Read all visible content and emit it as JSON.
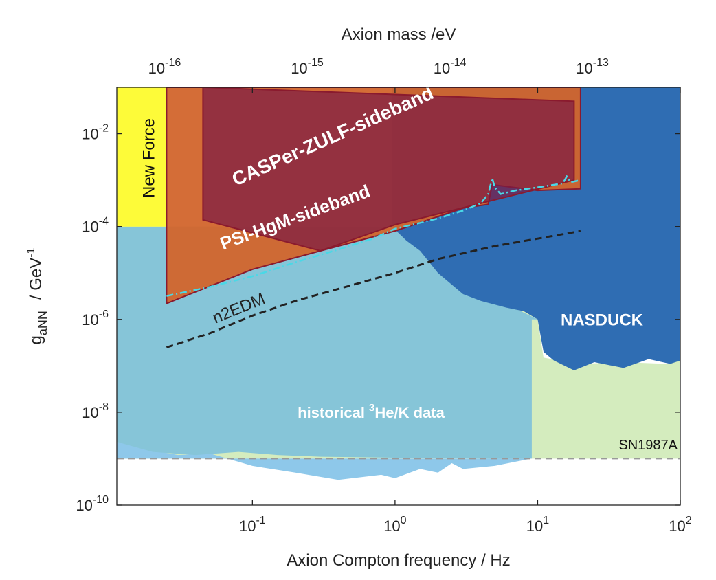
{
  "chart_data": {
    "type": "area",
    "xlabel": "Axion Compton frequency / Hz",
    "x2label": "Axion mass /eV",
    "ylabel_main": "g",
    "ylabel_sub": "aNN",
    "ylabel_unit": "/ GeV",
    "ylabel_unit_exp": "-1",
    "x_scale": "log",
    "y_scale": "log",
    "xlim": [
      0.0112,
      100
    ],
    "ylim": [
      1e-10,
      0.1
    ],
    "x_ticks": [
      {
        "value": 0.1,
        "base": "10",
        "exp": "-1"
      },
      {
        "value": 1,
        "base": "10",
        "exp": "0"
      },
      {
        "value": 10,
        "base": "10",
        "exp": "1"
      },
      {
        "value": 100,
        "base": "10",
        "exp": "2"
      }
    ],
    "y_ticks": [
      {
        "value": 1e-10,
        "base": "10",
        "exp": "-10"
      },
      {
        "value": 1e-08,
        "base": "10",
        "exp": "-8"
      },
      {
        "value": 1e-06,
        "base": "10",
        "exp": "-6"
      },
      {
        "value": 0.0001,
        "base": "10",
        "exp": "-4"
      },
      {
        "value": 0.01,
        "base": "10",
        "exp": "-2"
      }
    ],
    "x2_ticks": [
      {
        "value": 0.0242,
        "base": "10",
        "exp": "-16"
      },
      {
        "value": 0.242,
        "base": "10",
        "exp": "-15"
      },
      {
        "value": 2.42,
        "base": "10",
        "exp": "-14"
      },
      {
        "value": 24.2,
        "base": "10",
        "exp": "-13"
      }
    ],
    "grid": false,
    "regions": [
      {
        "name": "SN1987A",
        "color": "#d4ecbe",
        "points": [
          [
            0.0112,
            1e-09
          ],
          [
            100,
            1e-09
          ],
          [
            100,
            1.3e-07
          ],
          [
            80,
            1.1e-07
          ],
          [
            40,
            1.2e-07
          ],
          [
            20,
            1.1e-07
          ],
          [
            11,
            1.5e-07
          ],
          [
            10,
            1e-06
          ],
          [
            0.95,
            0.0001
          ],
          [
            0.0112,
            0.0001
          ]
        ]
      },
      {
        "name": "historical He/K data lower band",
        "color": "#8ec8ea",
        "points": [
          [
            0.0112,
            2.3e-09
          ],
          [
            0.02,
            1.5e-09
          ],
          [
            0.03,
            1.2e-09
          ],
          [
            0.05,
            1.3e-09
          ],
          [
            0.1,
            7e-10
          ],
          [
            0.2,
            5e-10
          ],
          [
            0.4,
            3.5e-10
          ],
          [
            0.8,
            4.5e-10
          ],
          [
            1.0,
            3.8e-10
          ],
          [
            1.5,
            6e-10
          ],
          [
            2.0,
            5e-10
          ],
          [
            2.5,
            8e-10
          ],
          [
            3.0,
            6e-10
          ],
          [
            5.0,
            7e-10
          ],
          [
            9.0,
            1e-09
          ],
          [
            9.0,
            1e-09
          ],
          [
            0.0112,
            1e-09
          ]
        ]
      },
      {
        "name": "historical He/K data",
        "color": "#86c5d8",
        "points": [
          [
            0.0112,
            2.3e-09
          ],
          [
            0.02,
            1.4e-09
          ],
          [
            0.04,
            1.2e-09
          ],
          [
            0.08,
            1.4e-09
          ],
          [
            0.15,
            1.2e-09
          ],
          [
            0.3,
            1.1e-09
          ],
          [
            1.0,
            1.05e-09
          ],
          [
            5.0,
            1e-09
          ],
          [
            9.1,
            1e-09
          ],
          [
            9.1,
            1e-06
          ],
          [
            10,
            1e-06
          ],
          [
            4,
            4e-06
          ],
          [
            2,
            1.5e-05
          ],
          [
            1,
            0.0001
          ],
          [
            0.0112,
            0.0001
          ]
        ]
      },
      {
        "name": "NASDUCK",
        "color": "#2f6db3",
        "points": [
          [
            0.95,
            0.0001
          ],
          [
            0.95,
            0.1
          ],
          [
            100,
            0.1
          ],
          [
            100,
            1.3e-07
          ],
          [
            85,
            1.1e-07
          ],
          [
            60,
            1.4e-07
          ],
          [
            40,
            9e-08
          ],
          [
            25,
            1.2e-07
          ],
          [
            18,
            8e-08
          ],
          [
            13,
            1.3e-07
          ],
          [
            11,
            2e-07
          ],
          [
            10,
            1e-06
          ],
          [
            8,
            1.5e-06
          ],
          [
            6,
            1.8e-06
          ],
          [
            4,
            2.5e-06
          ],
          [
            3,
            3.5e-06
          ],
          [
            2,
            1e-05
          ],
          [
            1.5,
            3e-05
          ],
          [
            1.2,
            5e-05
          ],
          [
            0.95,
            0.0001
          ]
        ]
      },
      {
        "name": "New Force",
        "color": "#fdfb39",
        "points": [
          [
            0.0112,
            0.0001
          ],
          [
            0.0112,
            0.1
          ],
          [
            0.025,
            0.1
          ],
          [
            0.025,
            0.0001
          ]
        ]
      },
      {
        "name": "PSI-HgM-sideband",
        "color": "#d2652c",
        "opacity": 0.95,
        "points": [
          [
            0.025,
            0.1
          ],
          [
            20,
            0.1
          ],
          [
            20,
            0.00065
          ],
          [
            10,
            0.0006
          ],
          [
            4.8,
            0.0008
          ],
          [
            4.5,
            0.0003
          ],
          [
            3,
            0.00025
          ],
          [
            1,
            8e-05
          ],
          [
            0.3,
            3e-05
          ],
          [
            0.1,
            1.2e-05
          ],
          [
            0.025,
            2.2e-06
          ]
        ]
      },
      {
        "name": "CASPer-ZULF-sideband",
        "color": "#7b1b44",
        "opacity": 0.72,
        "points": [
          [
            0.045,
            0.00014
          ],
          [
            0.045,
            0.1
          ],
          [
            18,
            0.05
          ],
          [
            18,
            0.001
          ],
          [
            1.0,
            0.00011
          ],
          [
            0.3,
            3e-05
          ],
          [
            0.045,
            0.00014
          ]
        ]
      }
    ],
    "curves": [
      {
        "name": "PSI-HgM-sideband limit",
        "color": "#4ad8e6",
        "style": "dashdot",
        "points": [
          [
            0.025,
            3.2e-06
          ],
          [
            0.05,
            5e-06
          ],
          [
            0.1,
            8.5e-06
          ],
          [
            0.2,
            1.7e-05
          ],
          [
            0.4,
            3.2e-05
          ],
          [
            0.7,
            5.5e-05
          ],
          [
            1.0,
            9e-05
          ],
          [
            1.5,
            0.00012
          ],
          [
            2.0,
            0.00015
          ],
          [
            3.0,
            0.00022
          ],
          [
            4.0,
            0.00032
          ],
          [
            4.5,
            0.0005
          ],
          [
            4.8,
            0.0011
          ],
          [
            5.0,
            0.0007
          ],
          [
            5.5,
            0.0005
          ],
          [
            7.0,
            0.0006
          ],
          [
            10.0,
            0.0007
          ],
          [
            15.0,
            0.00085
          ],
          [
            16.0,
            0.0012
          ],
          [
            17.0,
            0.0009
          ],
          [
            20.0,
            0.001
          ]
        ]
      },
      {
        "name": "n2EDM",
        "color": "#222222",
        "style": "dashed",
        "points": [
          [
            0.025,
            2.5e-07
          ],
          [
            0.05,
            5e-07
          ],
          [
            0.1,
            1.2e-06
          ],
          [
            0.2,
            2.5e-06
          ],
          [
            0.5,
            5.5e-06
          ],
          [
            1.0,
            1e-05
          ],
          [
            2.0,
            2e-05
          ],
          [
            5.0,
            3.8e-05
          ],
          [
            10.0,
            5.5e-05
          ],
          [
            20.0,
            8e-05
          ]
        ]
      },
      {
        "name": "SN1987A bound",
        "color": "#999999",
        "style": "dashed",
        "points": [
          [
            0.0112,
            1e-09
          ],
          [
            100,
            1e-09
          ]
        ]
      }
    ],
    "annotations": {
      "new_force": "New Force",
      "casper": "CASPer-ZULF-sideband",
      "psi": "PSI-HgM-sideband",
      "n2edm": "n2EDM",
      "nasduck": "NASDUCK",
      "historical": "historical ",
      "historical_sup": "3",
      "historical_rest": "He/K data",
      "sn": "SN1987A"
    }
  }
}
